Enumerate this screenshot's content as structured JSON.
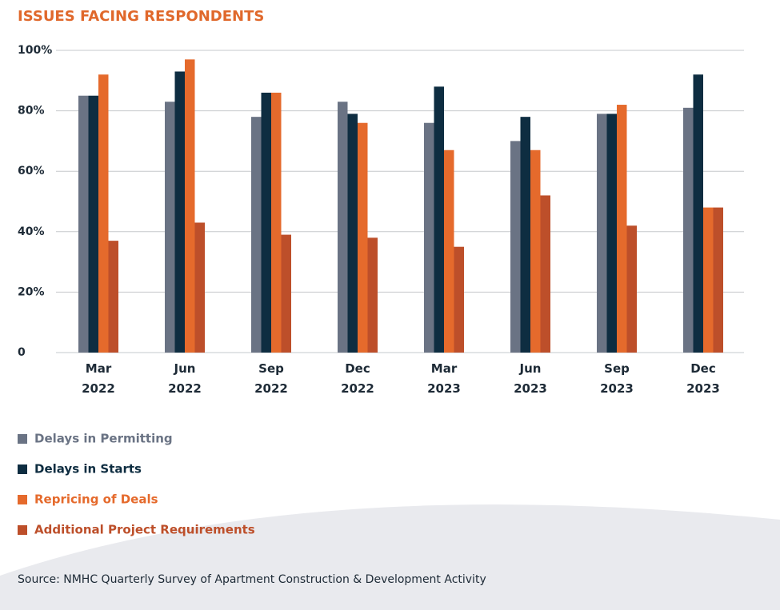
{
  "chart_data": {
    "type": "bar",
    "title": "ISSUES FACING RESPONDENTS",
    "categories": [
      [
        "Mar",
        "2022"
      ],
      [
        "Jun",
        "2022"
      ],
      [
        "Sep",
        "2022"
      ],
      [
        "Dec",
        "2022"
      ],
      [
        "Mar",
        "2023"
      ],
      [
        "Jun",
        "2023"
      ],
      [
        "Sep",
        "2023"
      ],
      [
        "Dec",
        "2023"
      ]
    ],
    "series": [
      {
        "name": "Delays in Permitting",
        "color": "#6a7384",
        "values": [
          85,
          83,
          78,
          83,
          76,
          70,
          79,
          81
        ]
      },
      {
        "name": "Delays in Starts",
        "color": "#0e2d41",
        "values": [
          85,
          93,
          86,
          79,
          88,
          78,
          79,
          92
        ]
      },
      {
        "name": "Repricing of Deals",
        "color": "#e56a2c",
        "values": [
          92,
          97,
          86,
          76,
          67,
          67,
          82,
          48
        ]
      },
      {
        "name": "Additional Project Requirements",
        "color": "#bd4f2a",
        "values": [
          37,
          43,
          39,
          38,
          35,
          52,
          42,
          48
        ]
      }
    ],
    "ylim": [
      0,
      100
    ],
    "yticks": [
      0,
      {
        "value": 20,
        "label": "20%"
      },
      {
        "value": 40,
        "label": "40%"
      },
      {
        "value": 60,
        "label": "60%"
      },
      {
        "value": 80,
        "label": "80%"
      },
      {
        "value": 100,
        "label": "100%"
      }
    ],
    "grid": true,
    "source": "Source: NMHC Quarterly Survey of Apartment Construction & Development Activity"
  }
}
